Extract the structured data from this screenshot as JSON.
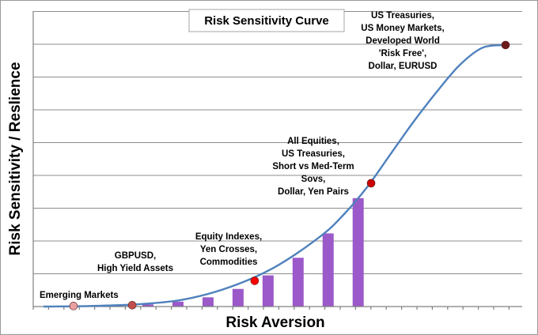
{
  "chart_data": {
    "type": "line",
    "title": "Risk Sensitivity Curve",
    "xlabel": "Risk Aversion",
    "ylabel": "Risk Sensitivity / Reslience",
    "xlim": [
      0,
      100
    ],
    "ylim": [
      0,
      100
    ],
    "gridlines": "horizontal",
    "curve_color": "#4f81bd",
    "bar_color": "#9b59c9",
    "curve": {
      "x": [
        0,
        10,
        20,
        30,
        40,
        50,
        60,
        65,
        70,
        75,
        80,
        85,
        90,
        95,
        100
      ],
      "y": [
        0,
        0.2,
        0.8,
        2.5,
        7,
        14.5,
        26,
        34,
        44,
        56,
        68,
        79,
        89,
        95.5,
        96.5
      ]
    },
    "bars": {
      "x": [
        22.6,
        29.1,
        35.6,
        42.1,
        48.6,
        55.1,
        61.6,
        68.1
      ],
      "y": [
        0.8,
        1.8,
        3.4,
        6.5,
        11.5,
        18,
        27,
        40
      ]
    },
    "points": [
      {
        "x": 6.5,
        "y": 0.2,
        "color": "#e8a0a0"
      },
      {
        "x": 19.2,
        "y": 0.5,
        "color": "#c0504d"
      },
      {
        "x": 45.7,
        "y": 9.5,
        "color": "#ff0000"
      },
      {
        "x": 70.9,
        "y": 45.5,
        "color": "#cc0000"
      },
      {
        "x": 100,
        "y": 96.5,
        "color": "#6b1a1a"
      }
    ],
    "annotations": [
      {
        "lines": [
          "Emerging Markets"
        ]
      },
      {
        "lines": [
          "GBPUSD,",
          "High Yield Assets"
        ]
      },
      {
        "lines": [
          "Equity Indexes,",
          "Yen Crosses,",
          "Commodities"
        ]
      },
      {
        "lines": [
          "All Equities,",
          "US Treasuries,",
          "Short vs Med-Term",
          "Sovs,",
          "Dollar, Yen Pairs"
        ]
      },
      {
        "lines": [
          "US Treasuries,",
          "US Money Markets,",
          "Developed World",
          "'Risk Free',",
          "Dollar, EURUSD"
        ]
      }
    ]
  }
}
